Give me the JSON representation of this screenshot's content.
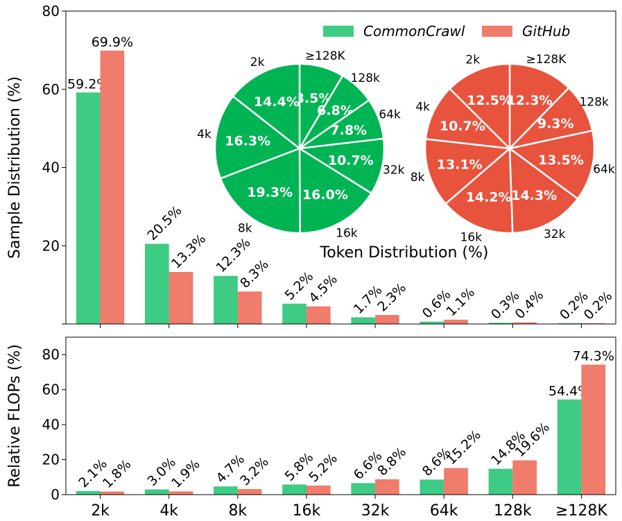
{
  "chart_data": [
    {
      "type": "bar",
      "categories": [
        "2k",
        "4k",
        "8k",
        "16k",
        "32k",
        "64k",
        "128k",
        "≥128K"
      ],
      "ylabel": "Sample Distribution (%)",
      "ylim": [
        0,
        80
      ],
      "yticks": [
        0,
        20,
        40,
        60,
        80
      ],
      "ytick_labels": [
        "",
        "20",
        "40",
        "60",
        "80"
      ],
      "series": [
        {
          "name": "CommonCrawl",
          "color": "#3ecb83",
          "values": [
            59.2,
            20.5,
            12.3,
            5.2,
            1.7,
            0.6,
            0.3,
            0.2
          ],
          "labels": [
            "59.2%",
            "20.5%",
            "12.3%",
            "5.2%",
            "1.7%",
            "0.6%",
            "0.3%",
            "0.2%"
          ]
        },
        {
          "name": "GitHub",
          "color": "#f07c6c",
          "values": [
            69.9,
            13.3,
            8.3,
            4.5,
            2.3,
            1.1,
            0.4,
            0.2
          ],
          "labels": [
            "69.9%",
            "13.3%",
            "8.3%",
            "4.5%",
            "2.3%",
            "1.1%",
            "0.4%",
            "0.2%"
          ]
        }
      ],
      "legend": {
        "placement": "top-right",
        "entries": [
          "CommonCrawl",
          "GitHub"
        ]
      }
    },
    {
      "type": "pie",
      "title": "Token Distribution (%)",
      "pies": [
        {
          "name": "CommonCrawl",
          "color": "#00b454",
          "categories": [
            "≥128K",
            "128k",
            "64k",
            "32k",
            "16k",
            "8k",
            "4k",
            "2k"
          ],
          "values": [
            8.5,
            6.8,
            7.8,
            10.7,
            16.0,
            19.3,
            16.3,
            14.4
          ],
          "labels": [
            "8.5%",
            "6.8%",
            "7.8%",
            "10.7%",
            "16.0%",
            "19.3%",
            "16.3%",
            "14.4%"
          ]
        },
        {
          "name": "GitHub",
          "color": "#e8533d",
          "categories": [
            "≥128K",
            "128k",
            "64k",
            "32k",
            "16k",
            "8k",
            "4k",
            "2k"
          ],
          "values": [
            12.3,
            9.3,
            13.5,
            14.3,
            14.2,
            13.1,
            10.7,
            12.5
          ],
          "labels": [
            "12.3%",
            "9.3%",
            "13.5%",
            "14.3%",
            "14.2%",
            "13.1%",
            "10.7%",
            "12.5%"
          ]
        }
      ]
    },
    {
      "type": "bar",
      "categories": [
        "2k",
        "4k",
        "8k",
        "16k",
        "32k",
        "64k",
        "128k",
        "≥128K"
      ],
      "ylabel": "Relative FLOPs (%)",
      "ylim": [
        0,
        90
      ],
      "yticks": [
        0,
        20,
        40,
        60,
        80
      ],
      "ytick_labels": [
        "0",
        "20",
        "40",
        "60",
        "80"
      ],
      "series": [
        {
          "name": "CommonCrawl",
          "color": "#3ecb83",
          "values": [
            2.1,
            3.0,
            4.7,
            5.8,
            6.6,
            8.6,
            14.8,
            54.4
          ],
          "labels": [
            "2.1%",
            "3.0%",
            "4.7%",
            "5.8%",
            "6.6%",
            "8.6%",
            "14.8%",
            "54.4%"
          ]
        },
        {
          "name": "GitHub",
          "color": "#f07c6c",
          "values": [
            1.8,
            1.9,
            3.2,
            5.2,
            8.8,
            15.2,
            19.6,
            74.3
          ],
          "labels": [
            "1.8%",
            "1.9%",
            "3.2%",
            "5.2%",
            "8.8%",
            "15.2%",
            "19.6%",
            "74.3%"
          ]
        }
      ]
    }
  ]
}
